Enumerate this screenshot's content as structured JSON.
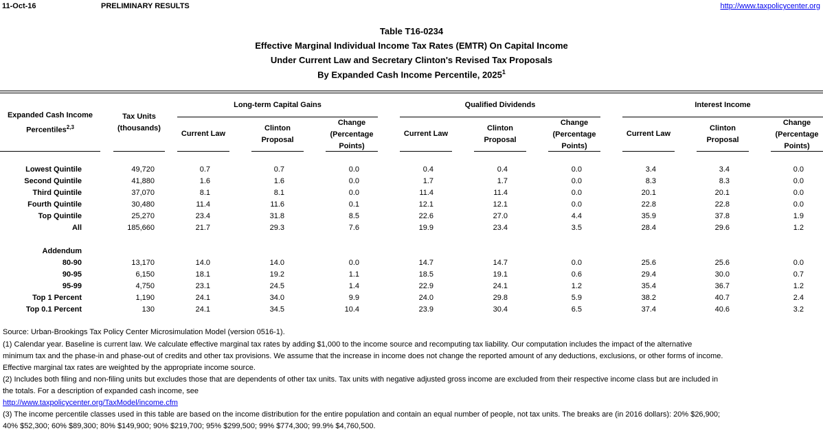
{
  "top": {
    "date": "11-Oct-16",
    "status": "PRELIMINARY RESULTS",
    "link": "http://www.taxpolicycenter.org"
  },
  "titles": [
    "Table T16-0234",
    "Effective Marginal Individual Income Tax Rates (EMTR) On Capital Income",
    "Under Current Law and Secretary Clinton's Revised Tax Proposals",
    "By Expanded Cash Income Percentile, 2025"
  ],
  "title_sup": "1",
  "header": {
    "row_label": "Expanded Cash Income",
    "row_label2": "Percentiles",
    "row_label_sup": "2,3",
    "tax_units": "Tax Units",
    "tax_units2": "(thousands)",
    "groups": [
      "Long-term Capital Gains",
      "Qualified Dividends",
      "Interest Income"
    ],
    "sub": {
      "current": "Current Law",
      "clinton1": "Clinton",
      "clinton2": "Proposal",
      "change1": "Change",
      "change2": "(Percentage",
      "change3": "Points)"
    }
  },
  "rows": [
    [
      "Lowest Quintile",
      "49,720",
      "0.7",
      "0.7",
      "0.0",
      "0.4",
      "0.4",
      "0.0",
      "3.4",
      "3.4",
      "0.0"
    ],
    [
      "Second Quintile",
      "41,880",
      "1.6",
      "1.6",
      "0.0",
      "1.7",
      "1.7",
      "0.0",
      "8.3",
      "8.3",
      "0.0"
    ],
    [
      "Third Quintile",
      "37,070",
      "8.1",
      "8.1",
      "0.0",
      "11.4",
      "11.4",
      "0.0",
      "20.1",
      "20.1",
      "0.0"
    ],
    [
      "Fourth Quintile",
      "30,480",
      "11.4",
      "11.6",
      "0.1",
      "12.1",
      "12.1",
      "0.0",
      "22.8",
      "22.8",
      "0.0"
    ],
    [
      "Top Quintile",
      "25,270",
      "23.4",
      "31.8",
      "8.5",
      "22.6",
      "27.0",
      "4.4",
      "35.9",
      "37.8",
      "1.9"
    ],
    [
      "All",
      "185,660",
      "21.7",
      "29.3",
      "7.6",
      "19.9",
      "23.4",
      "3.5",
      "28.4",
      "29.6",
      "1.2"
    ]
  ],
  "addendum_label": "Addendum",
  "addendum": [
    [
      "80-90",
      "13,170",
      "14.0",
      "14.0",
      "0.0",
      "14.7",
      "14.7",
      "0.0",
      "25.6",
      "25.6",
      "0.0"
    ],
    [
      "90-95",
      "6,150",
      "18.1",
      "19.2",
      "1.1",
      "18.5",
      "19.1",
      "0.6",
      "29.4",
      "30.0",
      "0.7"
    ],
    [
      "95-99",
      "4,750",
      "23.1",
      "24.5",
      "1.4",
      "22.9",
      "24.1",
      "1.2",
      "35.4",
      "36.7",
      "1.2"
    ],
    [
      "Top 1 Percent",
      "1,190",
      "24.1",
      "34.0",
      "9.9",
      "24.0",
      "29.8",
      "5.9",
      "38.2",
      "40.7",
      "2.4"
    ],
    [
      "Top 0.1 Percent",
      "130",
      "24.1",
      "34.5",
      "10.4",
      "23.9",
      "30.4",
      "6.5",
      "37.4",
      "40.6",
      "3.2"
    ]
  ],
  "footnotes": {
    "source": "Source: Urban-Brookings Tax Policy Center Microsimulation Model (version 0516-1).",
    "n1a": "(1) Calendar year. Baseline is current law. We calculate effective marginal tax rates by adding $1,000 to the income source and recomputing tax liability. Our computation includes the impact of the alternative",
    "n1b": "minimum tax and the phase-in and phase-out of credits and other tax provisions. We assume that the increase in income does not change the reported amount of any deductions, exclusions, or other forms of income.",
    "n1c": "Effective marginal tax rates are weighted by the appropriate income source.",
    "n2a": "(2) Includes both filing and non-filing units but excludes those that are dependents of other tax units. Tax units with negative adjusted gross income are excluded from their respective income class but are included in",
    "n2b": "the totals. For a description of expanded cash income, see",
    "n2link": "http://www.taxpolicycenter.org/TaxModel/income.cfm",
    "n3a": "(3) The income percentile classes used in this table are based on the income distribution for the entire population and contain an equal number of people, not tax units. The breaks are (in 2016 dollars): 20% $26,900;",
    "n3b": "40% $52,300; 60% $89,300; 80% $149,900; 90% $219,700; 95% $299,500; 99% $774,300; 99.9% $4,760,500."
  }
}
